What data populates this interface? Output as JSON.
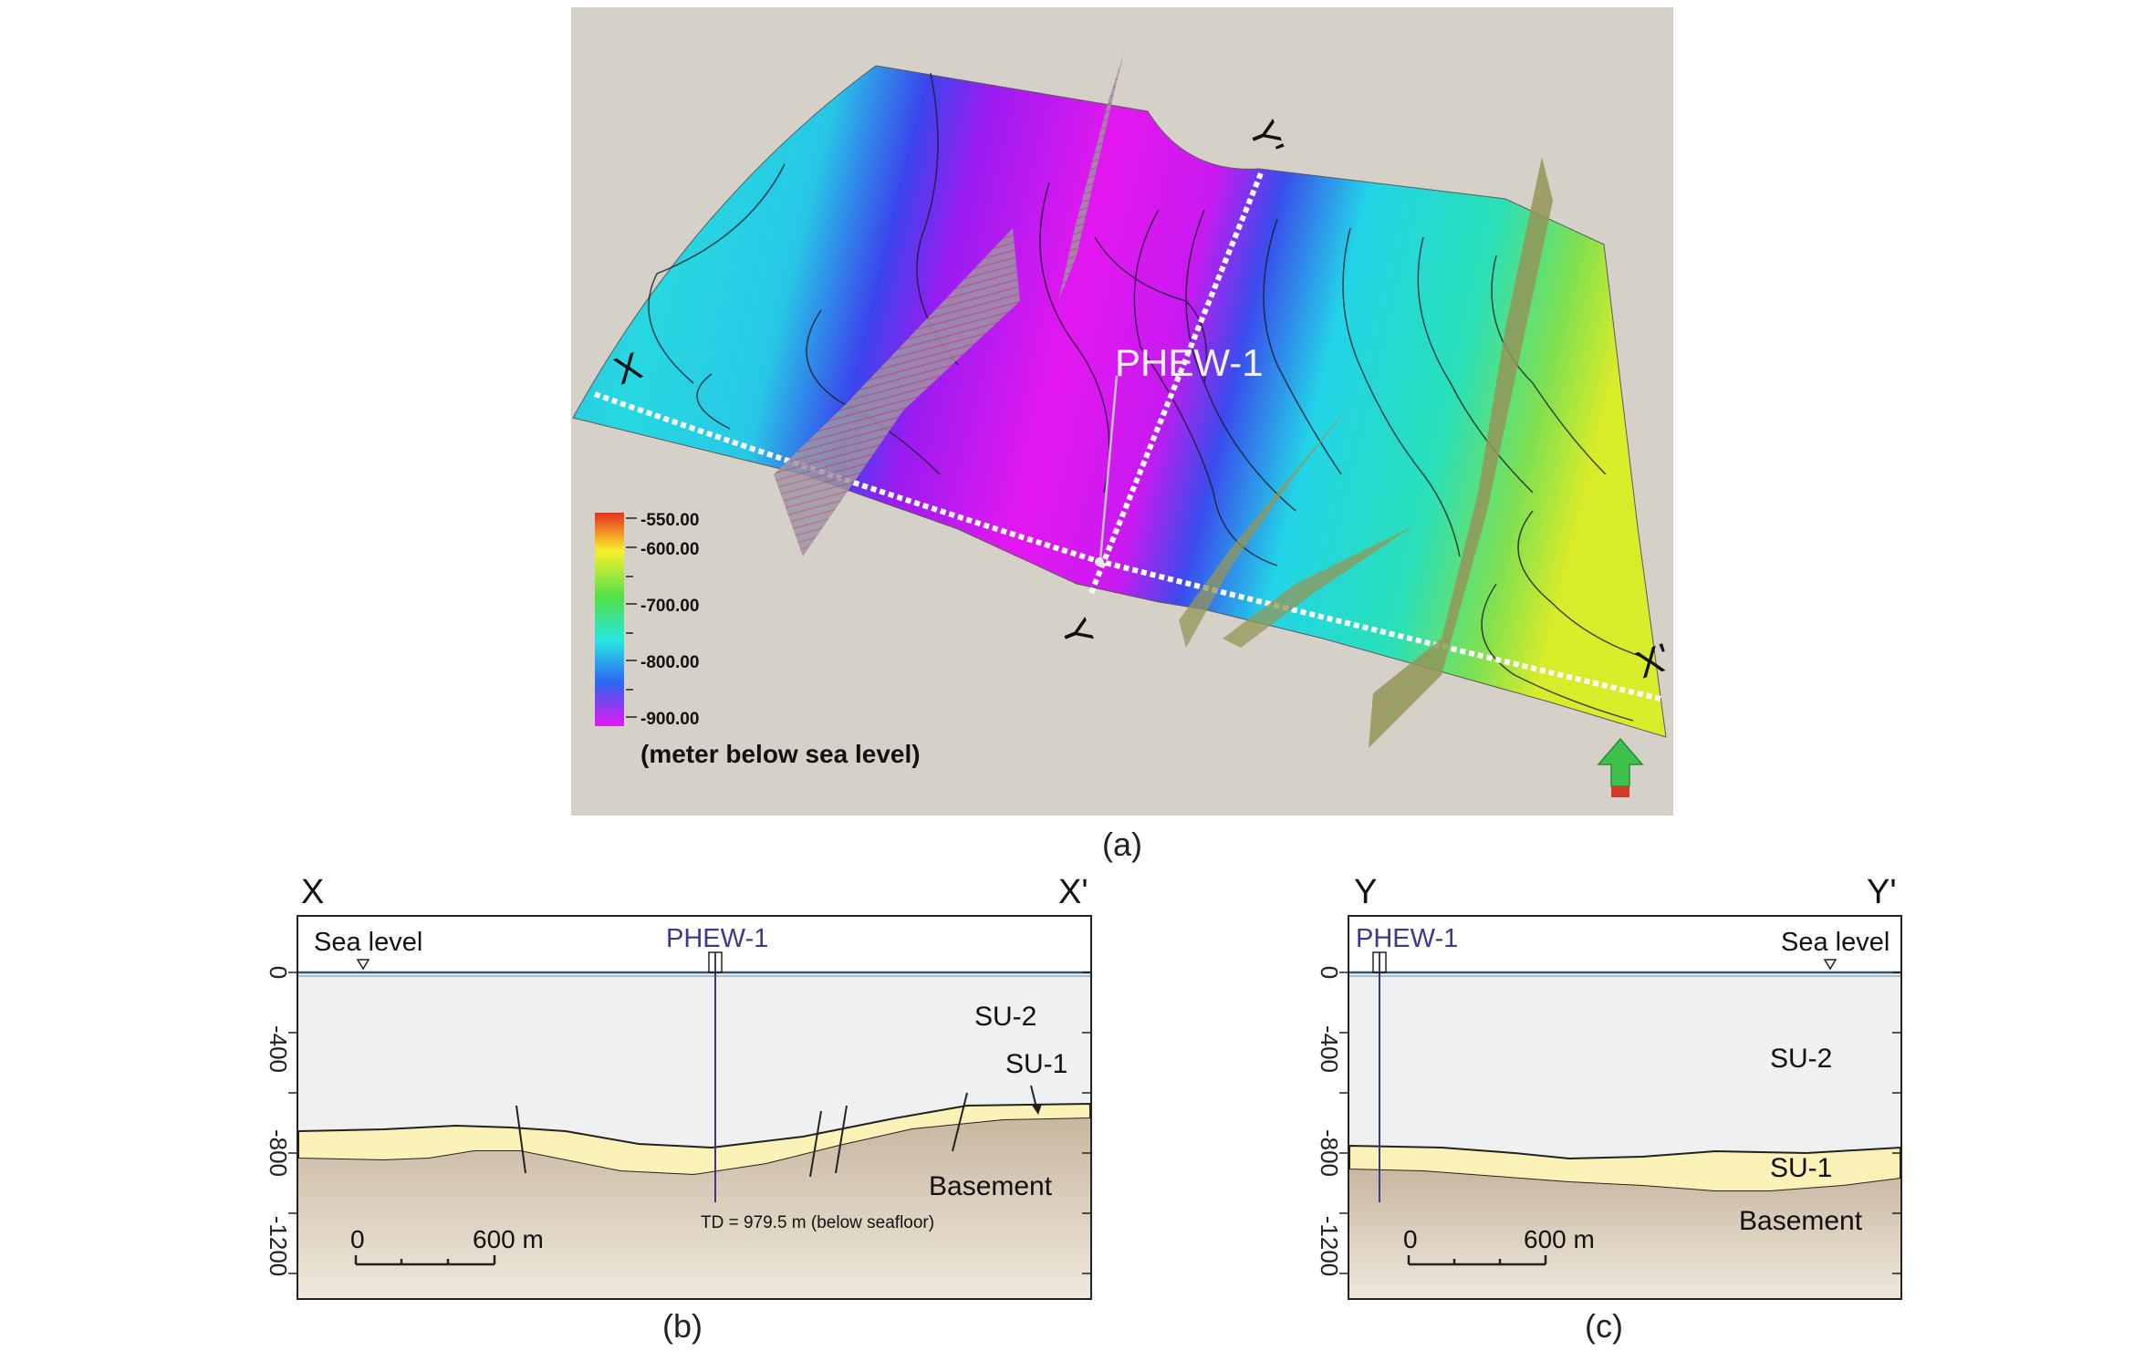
{
  "panel_a": {
    "caption": "(a)",
    "well_label": "PHEW-1",
    "line_labels": {
      "x": "X",
      "x_prime": "X'",
      "y": "Y",
      "y_prime": "Y'"
    },
    "colorbar": {
      "ticks": [
        "-550.00",
        "-600.00",
        "-700.00",
        "-800.00",
        "-900.00"
      ],
      "unit": "(meter below sea level)",
      "colors": [
        "#e8301e",
        "#f7f02a",
        "#4fe04a",
        "#27e6e2",
        "#2d64f0",
        "#e418f0"
      ]
    },
    "north_arrow_icon": "north-arrow-icon"
  },
  "panel_b": {
    "caption": "(b)",
    "left_label": "X",
    "right_label": "X'",
    "sea_level": "Sea level",
    "well_label": "PHEW-1",
    "yticks": [
      "0",
      "-400",
      "-800",
      "-1200"
    ],
    "units": {
      "su2": "SU-2",
      "su1": "SU-1",
      "basement": "Basement"
    },
    "td_note": "TD = 979.5 m (below seafloor)",
    "scale": {
      "zero": "0",
      "length": "600 m"
    }
  },
  "panel_c": {
    "caption": "(c)",
    "left_label": "Y",
    "right_label": "Y'",
    "sea_level": "Sea level",
    "well_label": "PHEW-1",
    "yticks": [
      "0",
      "-400",
      "-800",
      "-1200"
    ],
    "units": {
      "su2": "SU-2",
      "su1": "SU-1",
      "basement": "Basement"
    },
    "scale": {
      "zero": "0",
      "length": "600 m"
    }
  }
}
